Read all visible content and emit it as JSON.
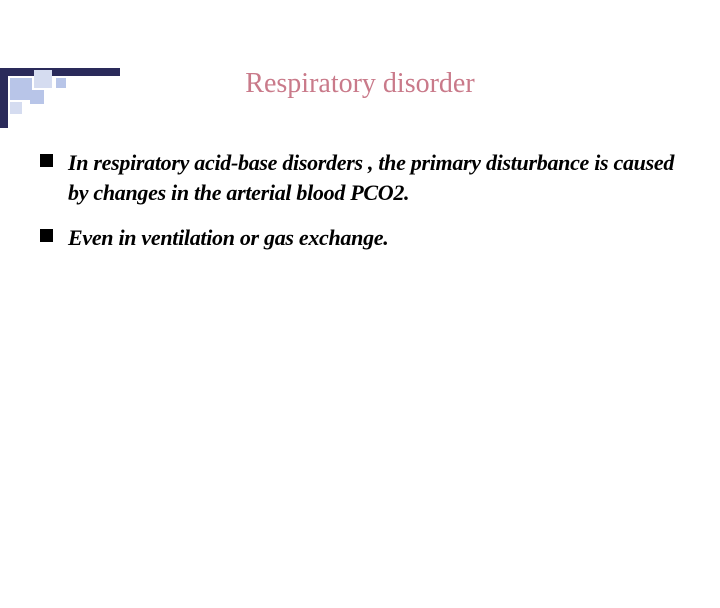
{
  "slide": {
    "title": "Respiratory disorder",
    "title_color": "#c97a8a",
    "title_fontsize": 28,
    "bullets": [
      "In respiratory acid-base disorders , the primary disturbance is caused by changes in the arterial blood PCO2.",
      "Even in ventilation or  gas exchange."
    ],
    "bullet_color": "#000000",
    "bullet_fontsize": 22,
    "bullet_lineheight": 1.35,
    "bullet_marker_color": "#000000",
    "decoration": {
      "bar_color": "#2a2a5a",
      "square_colors": [
        "#b8c5e8",
        "#d5dcf0"
      ]
    },
    "background_color": "#ffffff"
  }
}
